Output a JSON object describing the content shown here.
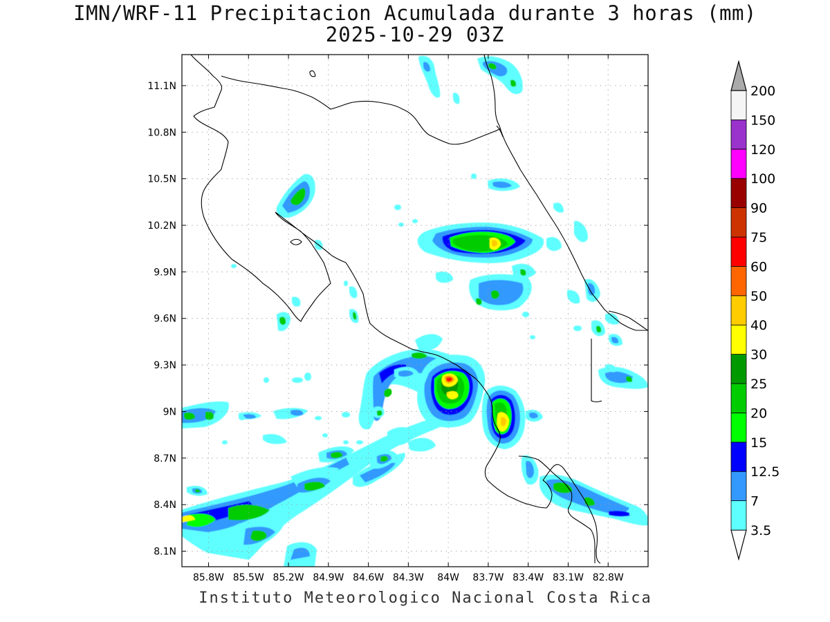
{
  "title": {
    "line1": "IMN/WRF-11 Precipitacion Acumulada durante 3 horas (mm)",
    "line2": "2025-10-29 03Z"
  },
  "footer": "Instituto Meteorologico Nacional Costa Rica",
  "map": {
    "lon_range": [
      -86.0,
      -82.5
    ],
    "lat_range": [
      8.0,
      11.3
    ],
    "x_ticks": [
      "85.8W",
      "85.5W",
      "85.2W",
      "84.9W",
      "84.6W",
      "84.3W",
      "84W",
      "83.7W",
      "83.4W",
      "83.1W",
      "82.8W"
    ],
    "x_tick_values": [
      -85.8,
      -85.5,
      -85.2,
      -84.9,
      -84.6,
      -84.3,
      -84.0,
      -83.7,
      -83.4,
      -83.1,
      -82.8
    ],
    "y_ticks": [
      "8.1N",
      "8.4N",
      "8.7N",
      "9N",
      "9.3N",
      "9.6N",
      "9.9N",
      "10.2N",
      "10.5N",
      "10.8N",
      "11.1N"
    ],
    "y_tick_values": [
      8.1,
      8.4,
      8.7,
      9.0,
      9.3,
      9.6,
      9.9,
      10.2,
      10.5,
      10.8,
      11.1
    ],
    "grid": "dotted"
  },
  "colorbar": {
    "labels": [
      "3.5",
      "7",
      "12.5",
      "15",
      "20",
      "25",
      "30",
      "40",
      "50",
      "60",
      "75",
      "90",
      "100",
      "120",
      "150",
      "200"
    ],
    "colors": [
      "#5effff",
      "#3399ff",
      "#0000ff",
      "#00ff00",
      "#00cc00",
      "#009900",
      "#ffff00",
      "#ffcc00",
      "#ff6600",
      "#ff0000",
      "#cc3300",
      "#990000",
      "#ff00ff",
      "#9933cc",
      "#f5f5f5",
      "#aaaaaa"
    ]
  }
}
